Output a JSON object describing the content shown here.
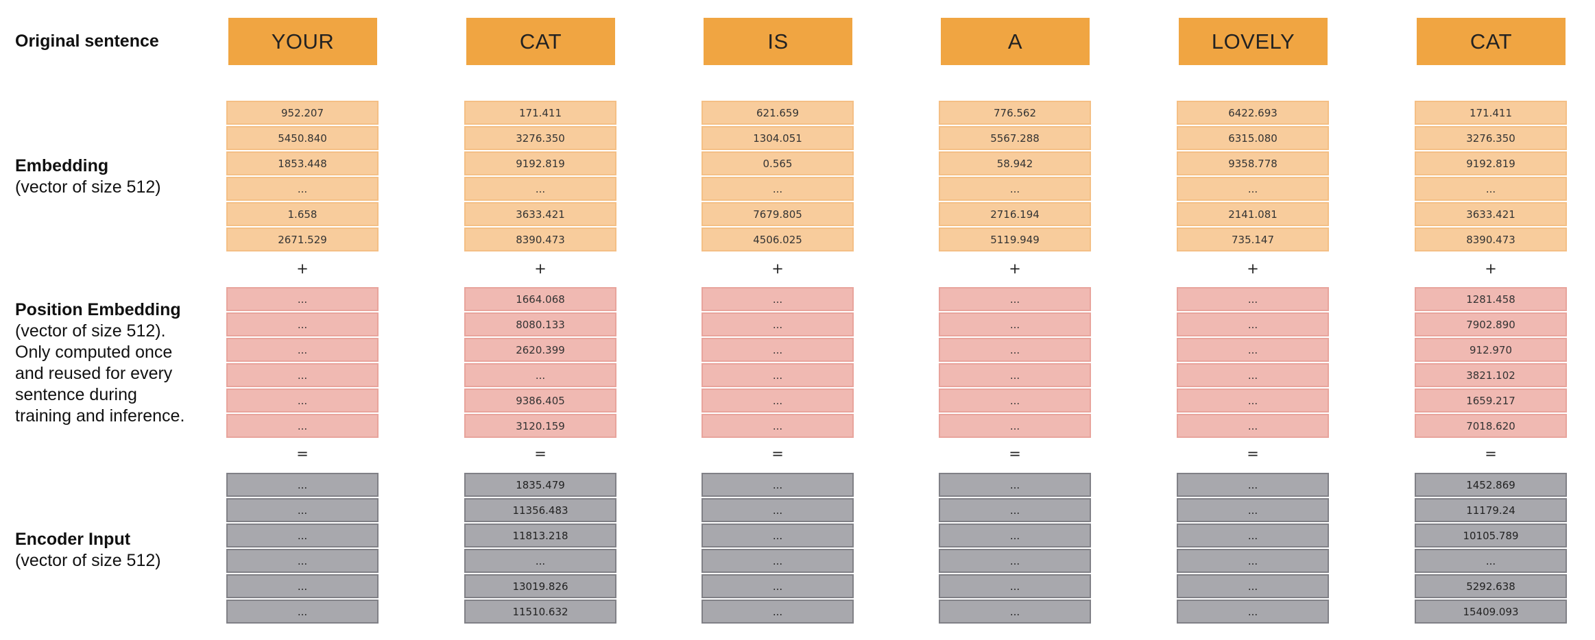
{
  "labels": {
    "original": {
      "title": "Original sentence"
    },
    "embedding": {
      "title": "Embedding",
      "sub": "(vector of size 512)"
    },
    "position": {
      "title": "Position Embedding",
      "sub": [
        "(vector of size 512).",
        "Only computed once",
        "and reused for every",
        "sentence during",
        "training and inference."
      ]
    },
    "encoder": {
      "title": "Encoder Input",
      "sub": "(vector of size 512)"
    }
  },
  "operators": {
    "plus": "+",
    "equals": "="
  },
  "columns": [
    {
      "word": "YOUR",
      "embedding": [
        "952.207",
        "5450.840",
        "1853.448",
        "...",
        "1.658",
        "2671.529"
      ],
      "position": [
        "...",
        "...",
        "...",
        "...",
        "...",
        "..."
      ],
      "encoder": [
        "...",
        "...",
        "...",
        "...",
        "...",
        "..."
      ]
    },
    {
      "word": "CAT",
      "embedding": [
        "171.411",
        "3276.350",
        "9192.819",
        "...",
        "3633.421",
        "8390.473"
      ],
      "position": [
        "1664.068",
        "8080.133",
        "2620.399",
        "...",
        "9386.405",
        "3120.159"
      ],
      "encoder": [
        "1835.479",
        "11356.483",
        "11813.218",
        "...",
        "13019.826",
        "11510.632"
      ]
    },
    {
      "word": "IS",
      "embedding": [
        "621.659",
        "1304.051",
        "0.565",
        "...",
        "7679.805",
        "4506.025"
      ],
      "position": [
        "...",
        "...",
        "...",
        "...",
        "...",
        "..."
      ],
      "encoder": [
        "...",
        "...",
        "...",
        "...",
        "...",
        "..."
      ]
    },
    {
      "word": "A",
      "embedding": [
        "776.562",
        "5567.288",
        "58.942",
        "...",
        "2716.194",
        "5119.949"
      ],
      "position": [
        "...",
        "...",
        "...",
        "...",
        "...",
        "..."
      ],
      "encoder": [
        "...",
        "...",
        "...",
        "...",
        "...",
        "..."
      ]
    },
    {
      "word": "LOVELY",
      "embedding": [
        "6422.693",
        "6315.080",
        "9358.778",
        "...",
        "2141.081",
        "735.147"
      ],
      "position": [
        "...",
        "...",
        "...",
        "...",
        "...",
        "..."
      ],
      "encoder": [
        "...",
        "...",
        "...",
        "...",
        "...",
        "..."
      ]
    },
    {
      "word": "CAT",
      "embedding": [
        "171.411",
        "3276.350",
        "9192.819",
        "...",
        "3633.421",
        "8390.473"
      ],
      "position": [
        "1281.458",
        "7902.890",
        "912.970",
        "3821.102",
        "1659.217",
        "7018.620"
      ],
      "encoder": [
        "1452.869",
        "11179.24",
        "10105.789",
        "...",
        "5292.638",
        "15409.093"
      ]
    }
  ]
}
